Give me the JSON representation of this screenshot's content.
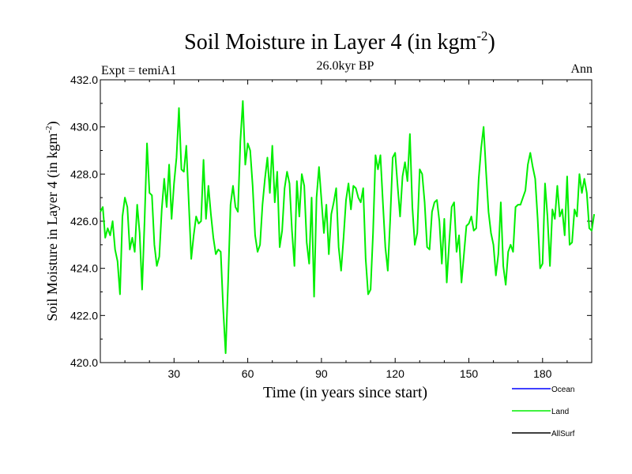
{
  "chart_data": {
    "type": "line",
    "title_main": "Soil Moisture in Layer 4 (in kgm",
    "title_sup": "-2",
    "title_close": ")",
    "subtitle": "26.0kyr BP",
    "expt_label": "Expt = temiA1",
    "season_label": "Ann",
    "xlabel": "Time (in years since start)",
    "ylabel_main": "Soil Moisture in Layer 4 (in kgm",
    "ylabel_sup": "-2",
    "ylabel_close": ")",
    "xlim": [
      0,
      200
    ],
    "ylim": [
      420,
      432
    ],
    "xticks": [
      30,
      60,
      90,
      120,
      150,
      180
    ],
    "yticks": [
      420.0,
      422.0,
      424.0,
      426.0,
      428.0,
      430.0,
      432.0
    ],
    "ytick_labels": [
      "420.0",
      "422.0",
      "424.0",
      "426.0",
      "428.0",
      "430.0",
      "432.0"
    ],
    "grid": false,
    "legend": [
      {
        "name": "Ocean",
        "color": "#0000ff"
      },
      {
        "name": "Land",
        "color": "#00ee00"
      },
      {
        "name": "AllSurf",
        "color": "#000000"
      }
    ],
    "series": [
      {
        "name": "Land",
        "color": "#00ee00",
        "x_start": 0,
        "x_step": 1,
        "values": [
          426.4,
          426.6,
          425.3,
          425.7,
          425.4,
          426.0,
          424.8,
          424.3,
          422.9,
          426.2,
          427.0,
          426.6,
          424.8,
          425.3,
          424.7,
          426.7,
          425.5,
          423.1,
          426.0,
          429.3,
          427.2,
          427.1,
          425.0,
          424.1,
          424.5,
          426.5,
          427.8,
          426.6,
          428.4,
          426.1,
          427.6,
          428.7,
          430.8,
          428.2,
          428.1,
          429.2,
          426.8,
          424.4,
          425.4,
          426.2,
          425.9,
          426.0,
          428.6,
          426.1,
          427.5,
          426.3,
          425.3,
          424.6,
          424.8,
          424.7,
          422.3,
          420.4,
          423.4,
          426.7,
          427.5,
          426.6,
          426.4,
          429.4,
          431.1,
          428.4,
          429.3,
          429.0,
          427.5,
          425.4,
          424.7,
          425.0,
          426.7,
          427.8,
          428.7,
          427.2,
          429.2,
          426.8,
          428.1,
          424.9,
          425.6,
          427.4,
          428.1,
          427.6,
          425.6,
          424.1,
          427.7,
          426.2,
          428.0,
          427.5,
          425.1,
          424.2,
          427.0,
          422.8,
          427.0,
          428.3,
          426.9,
          425.5,
          426.7,
          424.6,
          426.3,
          426.8,
          427.4,
          424.9,
          423.9,
          425.3,
          426.9,
          427.6,
          426.5,
          427.5,
          427.4,
          427.0,
          426.8,
          427.4,
          424.4,
          422.9,
          423.1,
          425.5,
          428.8,
          428.2,
          428.8,
          426.8,
          424.9,
          423.9,
          426.1,
          428.7,
          428.9,
          427.5,
          426.2,
          427.9,
          428.5,
          427.7,
          429.7,
          426.6,
          425.0,
          425.5,
          428.2,
          428.0,
          426.8,
          424.9,
          424.8,
          426.4,
          426.8,
          426.9,
          426.0,
          424.2,
          426.1,
          423.4,
          425.1,
          426.6,
          426.8,
          424.7,
          425.4,
          423.4,
          424.6,
          425.8,
          425.9,
          426.2,
          425.6,
          425.7,
          427.8,
          429.1,
          430.0,
          428.1,
          426.4,
          425.5,
          425.0,
          423.7,
          424.6,
          426.8,
          424.1,
          423.3,
          424.7,
          425.0,
          424.7,
          426.6,
          426.7,
          426.7,
          427.0,
          427.3,
          428.4,
          428.9,
          428.3,
          427.8,
          426.1,
          424.0,
          424.2,
          427.6,
          426.2,
          424.1,
          426.5,
          426.1,
          427.5,
          426.2,
          426.5,
          425.4,
          427.9,
          425.0,
          425.1,
          426.5,
          426.2,
          428.0,
          427.2,
          427.8,
          427.2,
          425.7,
          425.6,
          426.3
        ]
      }
    ]
  }
}
